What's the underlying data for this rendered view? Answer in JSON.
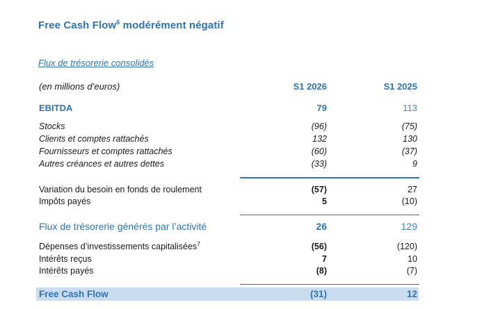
{
  "title": {
    "text": "Free Cash Flow",
    "sup": "6",
    "rest": " modérément négatif"
  },
  "subtitle": "Flux de trésorerie consolidés",
  "colors": {
    "accent_blue": "#2E74B5",
    "light_blue_text": "#4185C5",
    "highlight_bg": "#C9DCF0"
  },
  "table": {
    "unit_label": "(en millions d’euros)",
    "col_2026": "S1 2026",
    "col_2025": "S1 2025",
    "rows": [
      {
        "label": "EBITDA",
        "v2026": "79",
        "v2025": "113"
      },
      {
        "label": "Stocks",
        "v2026": "(96)",
        "v2025": "(75)"
      },
      {
        "label": "Clients et comptes rattachés",
        "v2026": "132",
        "v2025": "130"
      },
      {
        "label": "Fournisseurs et comptes rattachés",
        "v2026": "(60)",
        "v2025": "(37)"
      },
      {
        "label": "Autres créances et autres dettes",
        "v2026": "(33)",
        "v2025": "9"
      },
      {
        "label": "Variation du besoin en fonds de roulement",
        "v2026": "(57)",
        "v2025": "27"
      },
      {
        "label": "Impôts payés",
        "v2026": "5",
        "v2025": "(10)"
      },
      {
        "label": "Flux de trésorerie générés par l’activité",
        "v2026": "26",
        "v2025": "129"
      },
      {
        "label": "Dépenses d’investissements capitalisées",
        "sup": "7",
        "v2026": "(56)",
        "v2025": "(120)"
      },
      {
        "label": "Intérêts reçus",
        "v2026": "7",
        "v2025": "10"
      },
      {
        "label": "Intérêts payés",
        "v2026": "(8)",
        "v2025": "(7)"
      },
      {
        "label": "Free Cash Flow",
        "v2026": "(31)",
        "v2025": "12"
      }
    ]
  }
}
